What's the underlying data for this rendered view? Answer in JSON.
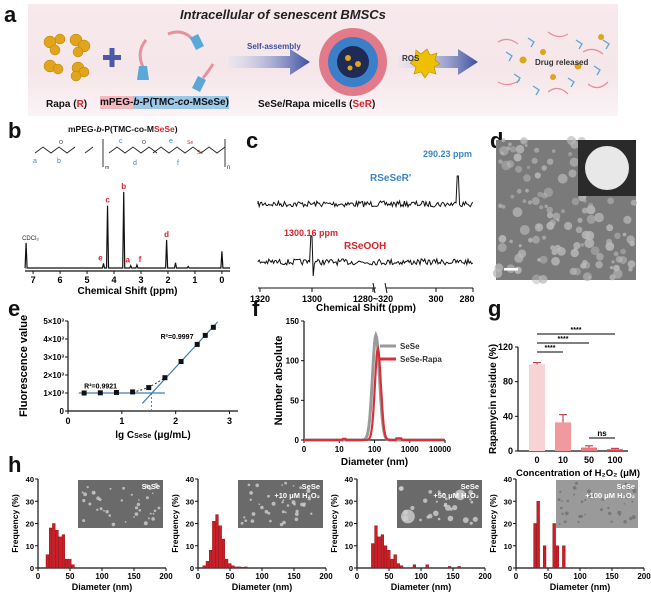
{
  "panel_a": {
    "label": "a",
    "title": "Intracellular of senescent BMSCs",
    "rapa_label_prefix": "Rapa (",
    "rapa_label_R": "R",
    "rapa_label_suffix": ")",
    "polymer_label_peg": "mPEG-",
    "polymer_label_b": "b",
    "polymer_label_rest": "-P(TMC-",
    "polymer_label_co": "co",
    "polymer_label_end": "-MSeSe)",
    "self_assembly": "Self-assembly",
    "micelle_label_prefix": "SeSe/Rapa micells (",
    "micelle_label_SeR": "SeR",
    "micelle_label_suffix": ")",
    "ros": "ROS",
    "drug_released": "Drug released",
    "colors": {
      "rapa": "#e0a51a",
      "peg": "#e8909c",
      "tmc": "#5aa8d8",
      "red": "#d8232a",
      "arrow": "#3a4fa0"
    }
  },
  "panel_b": {
    "label": "b",
    "title_prefix": "mPEG-",
    "title_b": "b",
    "title_mid": "-P(TMC-co-M",
    "title_sese": "SeSe",
    "title_end": ")",
    "peak_labels": [
      "a",
      "b",
      "c",
      "d",
      "e",
      "f"
    ],
    "solvent": "CDCl₃",
    "se_labels": [
      "Se",
      "Se"
    ],
    "subscripts": [
      "m",
      "n"
    ],
    "chart_data": {
      "type": "line",
      "xlabel": "Chemical Shift (ppm)",
      "xticks": [
        "7",
        "6",
        "5",
        "4",
        "3",
        "2",
        "1",
        "0"
      ],
      "xlim": [
        7.3,
        -0.3
      ],
      "peaks": [
        {
          "ppm": 7.26,
          "height": 0.33,
          "label": "CDCl₃"
        },
        {
          "ppm": 4.39,
          "height": 0.06,
          "label": "e"
        },
        {
          "ppm": 4.24,
          "height": 0.82,
          "label": "c"
        },
        {
          "ppm": 3.64,
          "height": 1.0,
          "label": "b"
        },
        {
          "ppm": 3.38,
          "height": 0.03,
          "label": "a"
        },
        {
          "ppm": 3.15,
          "height": 0.04,
          "label": "f"
        },
        {
          "ppm": 2.05,
          "height": 0.37,
          "label": "d"
        },
        {
          "ppm": 1.72,
          "height": 0.07,
          "label": ""
        },
        {
          "ppm": 1.25,
          "height": 0.02,
          "label": ""
        },
        {
          "ppm": 0.0,
          "height": 0.22,
          "label": ""
        }
      ]
    }
  },
  "panel_c": {
    "label": "c",
    "trace1_name": "RSeSeR'",
    "trace1_peak": "290.23 ppm",
    "trace2_name": "RSeOOH",
    "trace2_peak": "1300.16 ppm",
    "chart_data": {
      "type": "line",
      "xlabel": "Chemical Shift (ppm)",
      "xticks": [
        "1320",
        "1300",
        "1280~320",
        "300",
        "280"
      ],
      "axis_break": "1280~320",
      "series": [
        {
          "name": "RSeSeR'",
          "peak_ppm": 290.23
        },
        {
          "name": "RSeOOH",
          "peak_ppm": 1300.16
        }
      ]
    }
  },
  "panel_d": {
    "label": "d"
  },
  "panel_e": {
    "label": "e",
    "r2_low": "R²=0.9921",
    "r2_high": "R²=0.9997",
    "chart_data": {
      "type": "scatter",
      "xlabel": "lg C",
      "xlabel_sub": "SeSe",
      "xlabel_unit": " (μg/mL)",
      "ylabel": "Fluorescence value",
      "xticks": [
        "0",
        "1",
        "2",
        "3"
      ],
      "yticks": [
        "0",
        "1×10³",
        "2×10³",
        "3×10³",
        "4×10³",
        "5×10³"
      ],
      "xlim": [
        0,
        3
      ],
      "ylim": [
        0,
        5000
      ],
      "x": [
        0.3,
        0.6,
        0.9,
        1.2,
        1.5,
        1.8,
        2.1,
        2.4,
        2.55,
        2.7
      ],
      "y": [
        1000,
        1010,
        1030,
        1060,
        1300,
        1850,
        2750,
        3700,
        4200,
        4650
      ],
      "cmc_lg": 1.55
    }
  },
  "panel_f": {
    "label": "f",
    "chart_data": {
      "type": "line",
      "xlabel": "Diameter (nm)",
      "ylabel": "Number absolute",
      "xticks": [
        "0",
        "10",
        "100",
        "1000",
        "10000"
      ],
      "yticks": [
        "0",
        "50",
        "100",
        "150"
      ],
      "ylim": [
        0,
        150
      ],
      "xscale": "log",
      "legend": "top-right",
      "series": [
        {
          "name": "SeSe",
          "color": "#9a9a9a",
          "peak_nm": 110,
          "peak_value": 132
        },
        {
          "name": "SeSe-Rapa",
          "color": "#d8303a",
          "peak_nm": 125,
          "peak_value": 115
        }
      ]
    }
  },
  "panel_g": {
    "label": "g",
    "sig": [
      "****",
      "****",
      "****",
      "ns"
    ],
    "chart_data": {
      "type": "bar",
      "xlabel": "Concentration of H₂O₂ (μM)",
      "ylabel": "Rapamycin residue (%)",
      "categories": [
        "0",
        "10",
        "50",
        "100"
      ],
      "values": [
        100,
        33,
        4,
        2
      ],
      "errors": [
        2,
        9,
        2,
        1
      ],
      "yticks": [
        "0",
        "40",
        "80",
        "120"
      ],
      "ylim": [
        0,
        120
      ],
      "colors": [
        "#f8d3d5",
        "#f09a9e",
        "#e8787e",
        "#d44b52"
      ]
    }
  },
  "panel_h": {
    "label": "h",
    "charts": [
      {
        "inset": "SeSe",
        "inset2": "",
        "chart_data": {
          "type": "bar",
          "xlabel": "Diameter (nm)",
          "ylabel": "Frequency (%)",
          "xticks": [
            "0",
            "50",
            "100",
            "150",
            "200"
          ],
          "yticks": [
            "0",
            "10",
            "20",
            "30",
            "40"
          ],
          "xlim": [
            0,
            200
          ],
          "ylim": [
            0,
            40
          ],
          "bin_width": 5,
          "bins": [
            15,
            20,
            25,
            30,
            35,
            40,
            45,
            50,
            55
          ],
          "values": [
            6,
            18,
            20,
            17,
            14,
            15,
            4,
            4,
            1.5
          ]
        }
      },
      {
        "inset": "SeSe",
        "inset2": "+10 μM H₂O₂",
        "chart_data": {
          "type": "bar",
          "xlabel": "Diameter (nm)",
          "ylabel": "Frequency (%)",
          "xticks": [
            "0",
            "50",
            "100",
            "150",
            "200"
          ],
          "yticks": [
            "0",
            "10",
            "20",
            "30",
            "40"
          ],
          "xlim": [
            0,
            200
          ],
          "ylim": [
            0,
            40
          ],
          "bin_width": 5,
          "bins": [
            10,
            15,
            20,
            25,
            30,
            35,
            40,
            45,
            50,
            55,
            60,
            65,
            70,
            75
          ],
          "values": [
            1,
            3,
            8,
            21,
            24,
            19,
            13,
            4,
            2,
            1,
            0.5,
            0.5,
            0.3,
            0.5
          ]
        }
      },
      {
        "inset": "SeSe",
        "inset2": "+50 μM H₂O₂",
        "chart_data": {
          "type": "bar",
          "xlabel": "Diameter (nm)",
          "ylabel": "Frequency (%)",
          "xticks": [
            "0",
            "50",
            "100",
            "150",
            "200"
          ],
          "yticks": [
            "0",
            "10",
            "20",
            "30",
            "40"
          ],
          "xlim": [
            0,
            200
          ],
          "ylim": [
            0,
            40
          ],
          "bin_width": 5,
          "bins": [
            25,
            30,
            35,
            40,
            45,
            50,
            55,
            60,
            65,
            70,
            90,
            110,
            145,
            160
          ],
          "values": [
            11,
            19,
            14,
            15,
            10,
            8,
            4,
            6,
            2,
            1,
            1.5,
            1.5,
            0.7,
            0.7
          ]
        }
      },
      {
        "inset": "SeSe",
        "inset2": "+100 μM H₂O₂",
        "chart_data": {
          "type": "bar",
          "xlabel": "Diameter (nm)",
          "ylabel": "Frequency (%)",
          "xticks": [
            "0",
            "50",
            "100",
            "150",
            "200"
          ],
          "yticks": [
            "0",
            "10",
            "20",
            "30",
            "40"
          ],
          "xlim": [
            0,
            200
          ],
          "ylim": [
            0,
            40
          ],
          "bin_width": 5,
          "bins": [
            30,
            35,
            45,
            60,
            65,
            75
          ],
          "values": [
            20,
            30,
            10,
            20,
            10,
            10
          ]
        }
      }
    ]
  }
}
